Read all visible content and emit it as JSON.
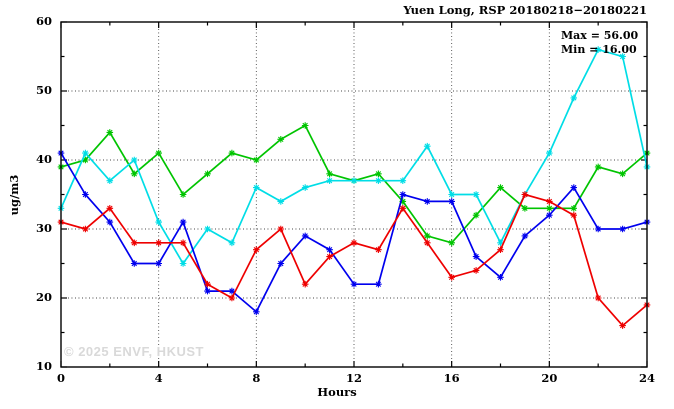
{
  "chart_data": {
    "type": "line",
    "title": "Yuen Long, RSP 20180218−20180221",
    "xlabel": "Hours",
    "ylabel": "ug/m3",
    "xlim": [
      0,
      24
    ],
    "ylim": [
      10,
      60
    ],
    "x_ticks": [
      0,
      4,
      8,
      12,
      16,
      20,
      24
    ],
    "x_minor_step": 2,
    "y_ticks": [
      10,
      20,
      30,
      40,
      50,
      60
    ],
    "y_minor_step": 5,
    "grid": {
      "x_lines": [
        4,
        8,
        12,
        16,
        20
      ],
      "y_lines": [
        20,
        30,
        40,
        50
      ]
    },
    "annotations": {
      "max": "Max = 56.00",
      "min": "Min = 16.00"
    },
    "watermark": "© 2025 ENVF, HKUST",
    "frame_color": "#000000",
    "x": [
      0,
      1,
      2,
      3,
      4,
      5,
      6,
      7,
      8,
      9,
      10,
      11,
      12,
      13,
      14,
      15,
      16,
      17,
      18,
      19,
      20,
      21,
      22,
      23,
      24
    ],
    "series": [
      {
        "name": "green-line",
        "color": "#00C400",
        "values": [
          39,
          40,
          44,
          38,
          41,
          35,
          38,
          41,
          40,
          43,
          45,
          38,
          37,
          38,
          34,
          29,
          28,
          32,
          36,
          33,
          33,
          33,
          39,
          38,
          41
        ]
      },
      {
        "name": "cyan-line",
        "color": "#00DDE6",
        "values": [
          33,
          41,
          37,
          40,
          31,
          25,
          30,
          28,
          36,
          34,
          36,
          37,
          37,
          37,
          37,
          42,
          35,
          35,
          28,
          35,
          41,
          49,
          56,
          55,
          39
        ]
      },
      {
        "name": "blue-line",
        "color": "#0000EE",
        "values": [
          41,
          35,
          31,
          25,
          25,
          31,
          21,
          21,
          18,
          25,
          29,
          27,
          22,
          22,
          35,
          34,
          34,
          26,
          23,
          29,
          32,
          36,
          30,
          30,
          31
        ]
      },
      {
        "name": "red-line",
        "color": "#EE0000",
        "values": [
          31,
          30,
          33,
          28,
          28,
          28,
          22,
          20,
          27,
          30,
          22,
          26,
          28,
          27,
          33,
          28,
          23,
          24,
          27,
          35,
          34,
          32,
          20,
          16,
          19
        ]
      }
    ]
  }
}
